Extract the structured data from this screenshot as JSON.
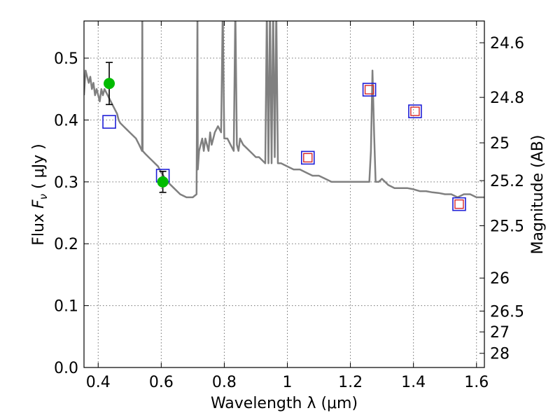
{
  "chart_data": {
    "type": "line",
    "xlabel": "Wavelength  λ (μm)",
    "ylabel": "Flux  F_ν  ( μJy )",
    "ylabel_parts": {
      "pre": "Flux  ",
      "sym": "F",
      "sub": "ν",
      "post": "  ( μJy )"
    },
    "y2label": "Magnitude (AB)",
    "xlim": [
      0.355,
      1.625
    ],
    "ylim": [
      0.0,
      0.56
    ],
    "grid": true,
    "x_ticks": [
      {
        "value": 0.4,
        "label": "0.4"
      },
      {
        "value": 0.6,
        "label": "0.6"
      },
      {
        "value": 0.8,
        "label": "0.8"
      },
      {
        "value": 1.0,
        "label": "1"
      },
      {
        "value": 1.2,
        "label": "1.2"
      },
      {
        "value": 1.4,
        "label": "1.4"
      },
      {
        "value": 1.6,
        "label": "1.6"
      }
    ],
    "y_ticks": [
      {
        "value": 0.0,
        "label": "0.0"
      },
      {
        "value": 0.1,
        "label": "0.1"
      },
      {
        "value": 0.2,
        "label": "0.2"
      },
      {
        "value": 0.3,
        "label": "0.3"
      },
      {
        "value": 0.4,
        "label": "0.4"
      },
      {
        "value": 0.5,
        "label": "0.5"
      }
    ],
    "y2_ticks": [
      {
        "mag": 24.6,
        "label": "24.6"
      },
      {
        "mag": 24.8,
        "label": "24.8"
      },
      {
        "mag": 25.0,
        "label": "25"
      },
      {
        "mag": 25.2,
        "label": "25.2"
      },
      {
        "mag": 25.5,
        "label": "25.5"
      },
      {
        "mag": 26.0,
        "label": "26"
      },
      {
        "mag": 26.5,
        "label": "26.5"
      },
      {
        "mag": 27.0,
        "label": "27"
      },
      {
        "mag": 28.0,
        "label": "28"
      }
    ],
    "series": [
      {
        "kind": "spectrum",
        "color": "#808080",
        "x": [
          0.355,
          0.36,
          0.365,
          0.37,
          0.375,
          0.38,
          0.385,
          0.39,
          0.395,
          0.4,
          0.405,
          0.41,
          0.415,
          0.42,
          0.43,
          0.44,
          0.45,
          0.46,
          0.465,
          0.47,
          0.48,
          0.49,
          0.5,
          0.51,
          0.52,
          0.53,
          0.539,
          0.54,
          0.541,
          0.55,
          0.56,
          0.57,
          0.58,
          0.59,
          0.6,
          0.62,
          0.64,
          0.66,
          0.68,
          0.7,
          0.712,
          0.715,
          0.716,
          0.72,
          0.73,
          0.735,
          0.74,
          0.75,
          0.755,
          0.76,
          0.765,
          0.77,
          0.78,
          0.79,
          0.795,
          0.8,
          0.81,
          0.82,
          0.83,
          0.835,
          0.84,
          0.845,
          0.85,
          0.86,
          0.87,
          0.88,
          0.89,
          0.9,
          0.91,
          0.92,
          0.93,
          0.935,
          0.94,
          0.945,
          0.95,
          0.955,
          0.96,
          0.965,
          0.97,
          0.98,
          1.0,
          1.02,
          1.04,
          1.06,
          1.08,
          1.1,
          1.12,
          1.14,
          1.16,
          1.18,
          1.2,
          1.22,
          1.24,
          1.25,
          1.26,
          1.265,
          1.27,
          1.275,
          1.28,
          1.285,
          1.29,
          1.3,
          1.32,
          1.34,
          1.36,
          1.38,
          1.4,
          1.42,
          1.44,
          1.46,
          1.48,
          1.5,
          1.52,
          1.54,
          1.56,
          1.58,
          1.6,
          1.625
        ],
        "y": [
          0.44,
          0.48,
          0.47,
          0.46,
          0.47,
          0.45,
          0.46,
          0.44,
          0.45,
          0.44,
          0.43,
          0.45,
          0.44,
          0.45,
          0.44,
          0.43,
          0.42,
          0.41,
          0.4,
          0.395,
          0.39,
          0.385,
          0.38,
          0.375,
          0.37,
          0.36,
          0.35,
          0.58,
          0.35,
          0.345,
          0.34,
          0.335,
          0.33,
          0.325,
          0.315,
          0.3,
          0.29,
          0.28,
          0.275,
          0.275,
          0.28,
          0.58,
          0.32,
          0.35,
          0.37,
          0.35,
          0.37,
          0.35,
          0.38,
          0.36,
          0.37,
          0.38,
          0.39,
          0.38,
          0.58,
          0.37,
          0.37,
          0.36,
          0.35,
          0.58,
          0.36,
          0.35,
          0.37,
          0.36,
          0.355,
          0.35,
          0.345,
          0.34,
          0.34,
          0.335,
          0.33,
          0.58,
          0.33,
          0.58,
          0.33,
          0.58,
          0.34,
          0.58,
          0.33,
          0.33,
          0.325,
          0.32,
          0.32,
          0.315,
          0.31,
          0.31,
          0.305,
          0.3,
          0.3,
          0.3,
          0.3,
          0.3,
          0.3,
          0.3,
          0.3,
          0.35,
          0.48,
          0.38,
          0.3,
          0.3,
          0.3,
          0.305,
          0.295,
          0.29,
          0.29,
          0.29,
          0.288,
          0.285,
          0.285,
          0.283,
          0.282,
          0.28,
          0.28,
          0.275,
          0.28,
          0.28,
          0.275,
          0.275
        ]
      },
      {
        "kind": "model-photometry",
        "color": "#1f1fd6",
        "x": [
          0.435,
          0.605,
          1.065,
          1.26,
          1.405,
          1.545
        ],
        "y": [
          0.397,
          0.31,
          0.339,
          0.449,
          0.414,
          0.264
        ]
      },
      {
        "kind": "observed-photometry-inner",
        "color": "#d62728",
        "x": [
          1.065,
          1.26,
          1.405,
          1.545
        ],
        "y": [
          0.339,
          0.449,
          0.414,
          0.264
        ]
      },
      {
        "kind": "observed-photometry-points",
        "color": "#00bb00",
        "x": [
          0.435,
          0.605
        ],
        "y": [
          0.459,
          0.3
        ],
        "yerr": [
          0.034,
          0.017
        ]
      }
    ]
  }
}
